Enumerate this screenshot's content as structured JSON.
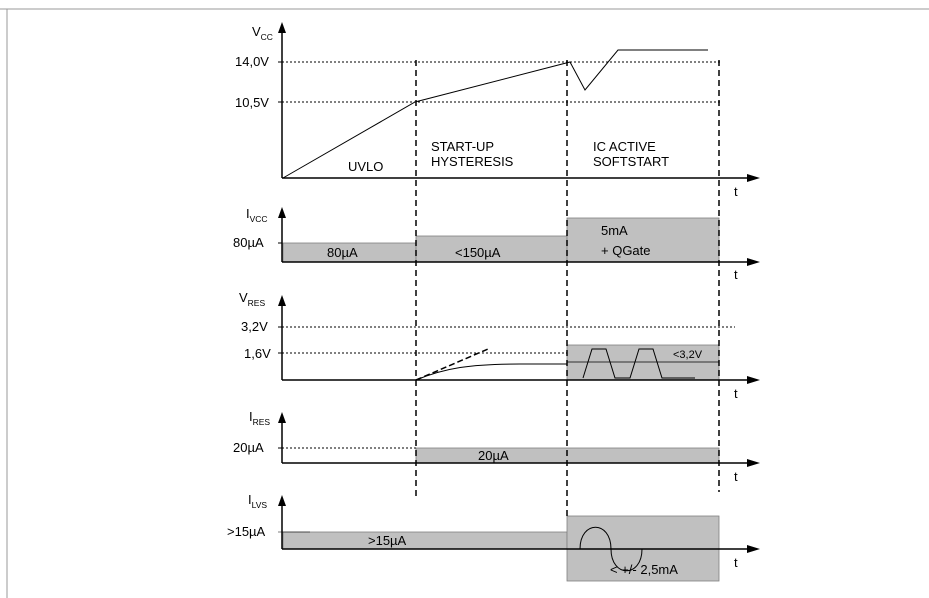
{
  "colors": {
    "fill": "#c0c0c0",
    "line": "#000000",
    "border": "#808080"
  },
  "panels": {
    "vcc": {
      "axis_label": "V",
      "axis_sub": "CC",
      "levels": [
        "14,0V",
        "10,5V"
      ],
      "regions": [
        "UVLO",
        "START-UP",
        "HYSTERESIS",
        "IC ACTIVE",
        "SOFTSTART"
      ],
      "t_label": "t"
    },
    "ivcc": {
      "axis_label": "I",
      "axis_sub": "VCC",
      "level": "80µA",
      "boxes": [
        "80µA",
        "<150µA",
        "5mA",
        "+ QGate"
      ],
      "t_label": "t"
    },
    "vres": {
      "axis_label": "V",
      "axis_sub": "RES",
      "levels": [
        "3,2V",
        "1,6V"
      ],
      "box_note": "<3,2V",
      "t_label": "t"
    },
    "ires": {
      "axis_label": "I",
      "axis_sub": "RES",
      "level": "20µA",
      "box": "20µA",
      "t_label": "t"
    },
    "ilvs": {
      "axis_label": "I",
      "axis_sub": "LVS",
      "level": ">15µA",
      "box": ">15µA",
      "box_note": "< +/- 2,5mA",
      "t_label": "t"
    }
  }
}
